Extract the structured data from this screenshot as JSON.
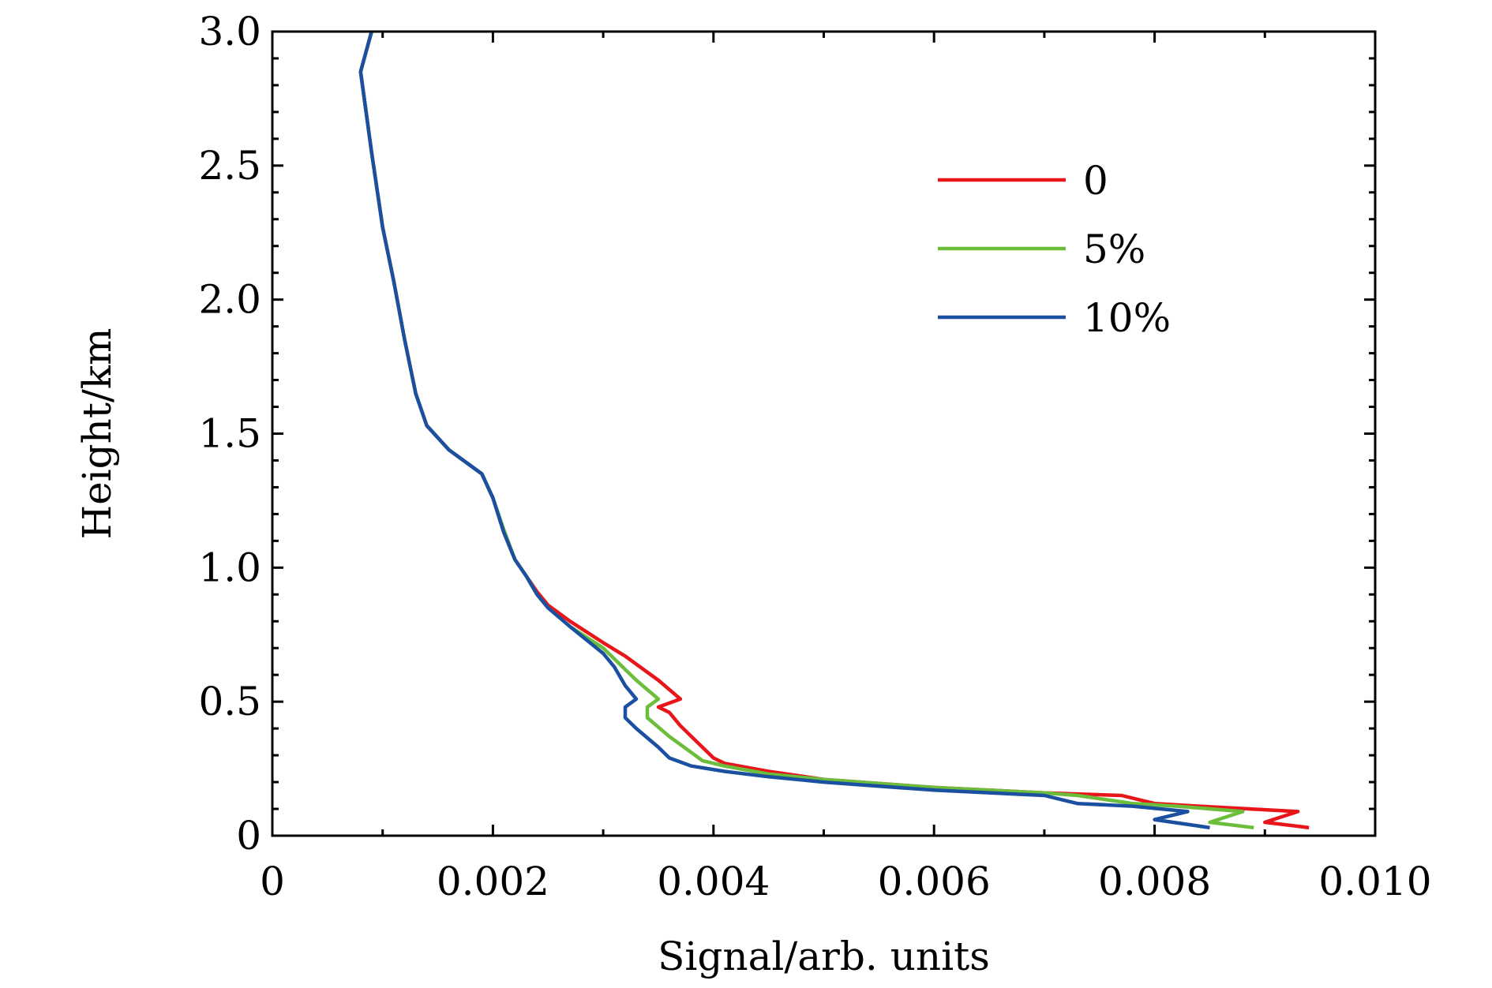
{
  "chart_data": {
    "type": "line",
    "title": "",
    "xlabel": "Signal/arb. units",
    "ylabel": "Height/km",
    "xlim": [
      0,
      0.01
    ],
    "ylim": [
      0,
      3.0
    ],
    "x_ticks": [
      "0",
      "0.002",
      "0.004",
      "0.006",
      "0.008",
      "0.010"
    ],
    "x_tick_values": [
      0,
      0.002,
      0.004,
      0.006,
      0.008,
      0.01
    ],
    "y_ticks": [
      "0",
      "0.5",
      "1.0",
      "1.5",
      "2.0",
      "2.5",
      "3.0"
    ],
    "y_tick_values": [
      0,
      0.5,
      1.0,
      1.5,
      2.0,
      2.5,
      3.0
    ],
    "grid": false,
    "legend_position": "upper-right",
    "series": [
      {
        "name": "0",
        "color": "#e8151b",
        "points": [
          [
            0.0094,
            0.03
          ],
          [
            0.009,
            0.05
          ],
          [
            0.0093,
            0.09
          ],
          [
            0.0084,
            0.11
          ],
          [
            0.008,
            0.12
          ],
          [
            0.0077,
            0.15
          ],
          [
            0.007,
            0.16
          ],
          [
            0.006,
            0.18
          ],
          [
            0.005,
            0.21
          ],
          [
            0.0045,
            0.24
          ],
          [
            0.0041,
            0.27
          ],
          [
            0.004,
            0.29
          ],
          [
            0.0039,
            0.33
          ],
          [
            0.0037,
            0.41
          ],
          [
            0.0036,
            0.46
          ],
          [
            0.0035,
            0.48
          ],
          [
            0.0037,
            0.51
          ],
          [
            0.0035,
            0.58
          ],
          [
            0.0032,
            0.67
          ],
          [
            0.003,
            0.72
          ],
          [
            0.0027,
            0.8
          ],
          [
            0.0025,
            0.86
          ],
          [
            0.0024,
            0.91
          ],
          [
            0.0023,
            0.97
          ],
          [
            0.0022,
            1.03
          ],
          [
            0.0021,
            1.13
          ],
          [
            0.002,
            1.26
          ],
          [
            0.0019,
            1.35
          ],
          [
            0.0016,
            1.44
          ],
          [
            0.0014,
            1.53
          ],
          [
            0.0013,
            1.65
          ],
          [
            0.0012,
            1.85
          ],
          [
            0.0011,
            2.07
          ],
          [
            0.001,
            2.27
          ],
          [
            0.0009,
            2.55
          ],
          [
            0.0008,
            2.85
          ],
          [
            0.0009,
            3.0
          ]
        ]
      },
      {
        "name": "5%",
        "color": "#6bbd3b",
        "points": [
          [
            0.0089,
            0.03
          ],
          [
            0.0085,
            0.05
          ],
          [
            0.0088,
            0.09
          ],
          [
            0.0082,
            0.11
          ],
          [
            0.0078,
            0.12
          ],
          [
            0.0073,
            0.15
          ],
          [
            0.007,
            0.16
          ],
          [
            0.006,
            0.18
          ],
          [
            0.005,
            0.21
          ],
          [
            0.0045,
            0.23
          ],
          [
            0.0041,
            0.26
          ],
          [
            0.0039,
            0.28
          ],
          [
            0.0038,
            0.31
          ],
          [
            0.0036,
            0.37
          ],
          [
            0.0034,
            0.44
          ],
          [
            0.0034,
            0.48
          ],
          [
            0.0035,
            0.51
          ],
          [
            0.0033,
            0.58
          ],
          [
            0.0031,
            0.66
          ],
          [
            0.003,
            0.7
          ],
          [
            0.0027,
            0.78
          ],
          [
            0.0025,
            0.85
          ],
          [
            0.0024,
            0.9
          ],
          [
            0.0023,
            0.97
          ],
          [
            0.0022,
            1.03
          ],
          [
            0.0021,
            1.14
          ],
          [
            0.002,
            1.26
          ],
          [
            0.0019,
            1.35
          ],
          [
            0.0016,
            1.44
          ],
          [
            0.0014,
            1.53
          ],
          [
            0.0013,
            1.65
          ],
          [
            0.0012,
            1.85
          ],
          [
            0.0011,
            2.07
          ],
          [
            0.001,
            2.27
          ],
          [
            0.0009,
            2.55
          ],
          [
            0.0008,
            2.85
          ],
          [
            0.0009,
            3.0
          ]
        ]
      },
      {
        "name": "10%",
        "color": "#1b4fa0",
        "points": [
          [
            0.0085,
            0.03
          ],
          [
            0.008,
            0.06
          ],
          [
            0.0083,
            0.09
          ],
          [
            0.0078,
            0.11
          ],
          [
            0.0073,
            0.12
          ],
          [
            0.007,
            0.15
          ],
          [
            0.006,
            0.17
          ],
          [
            0.005,
            0.2
          ],
          [
            0.0045,
            0.22
          ],
          [
            0.0041,
            0.24
          ],
          [
            0.0038,
            0.26
          ],
          [
            0.0036,
            0.29
          ],
          [
            0.0035,
            0.33
          ],
          [
            0.0033,
            0.4
          ],
          [
            0.0032,
            0.44
          ],
          [
            0.0032,
            0.48
          ],
          [
            0.0033,
            0.51
          ],
          [
            0.0032,
            0.56
          ],
          [
            0.0031,
            0.63
          ],
          [
            0.003,
            0.68
          ],
          [
            0.0027,
            0.78
          ],
          [
            0.0025,
            0.85
          ],
          [
            0.0024,
            0.9
          ],
          [
            0.0023,
            0.97
          ],
          [
            0.0022,
            1.03
          ],
          [
            0.0021,
            1.13
          ],
          [
            0.002,
            1.26
          ],
          [
            0.0019,
            1.35
          ],
          [
            0.0016,
            1.44
          ],
          [
            0.0014,
            1.53
          ],
          [
            0.0013,
            1.65
          ],
          [
            0.0012,
            1.85
          ],
          [
            0.0011,
            2.07
          ],
          [
            0.001,
            2.27
          ],
          [
            0.0009,
            2.55
          ],
          [
            0.0008,
            2.85
          ],
          [
            0.0009,
            3.0
          ]
        ]
      }
    ]
  }
}
